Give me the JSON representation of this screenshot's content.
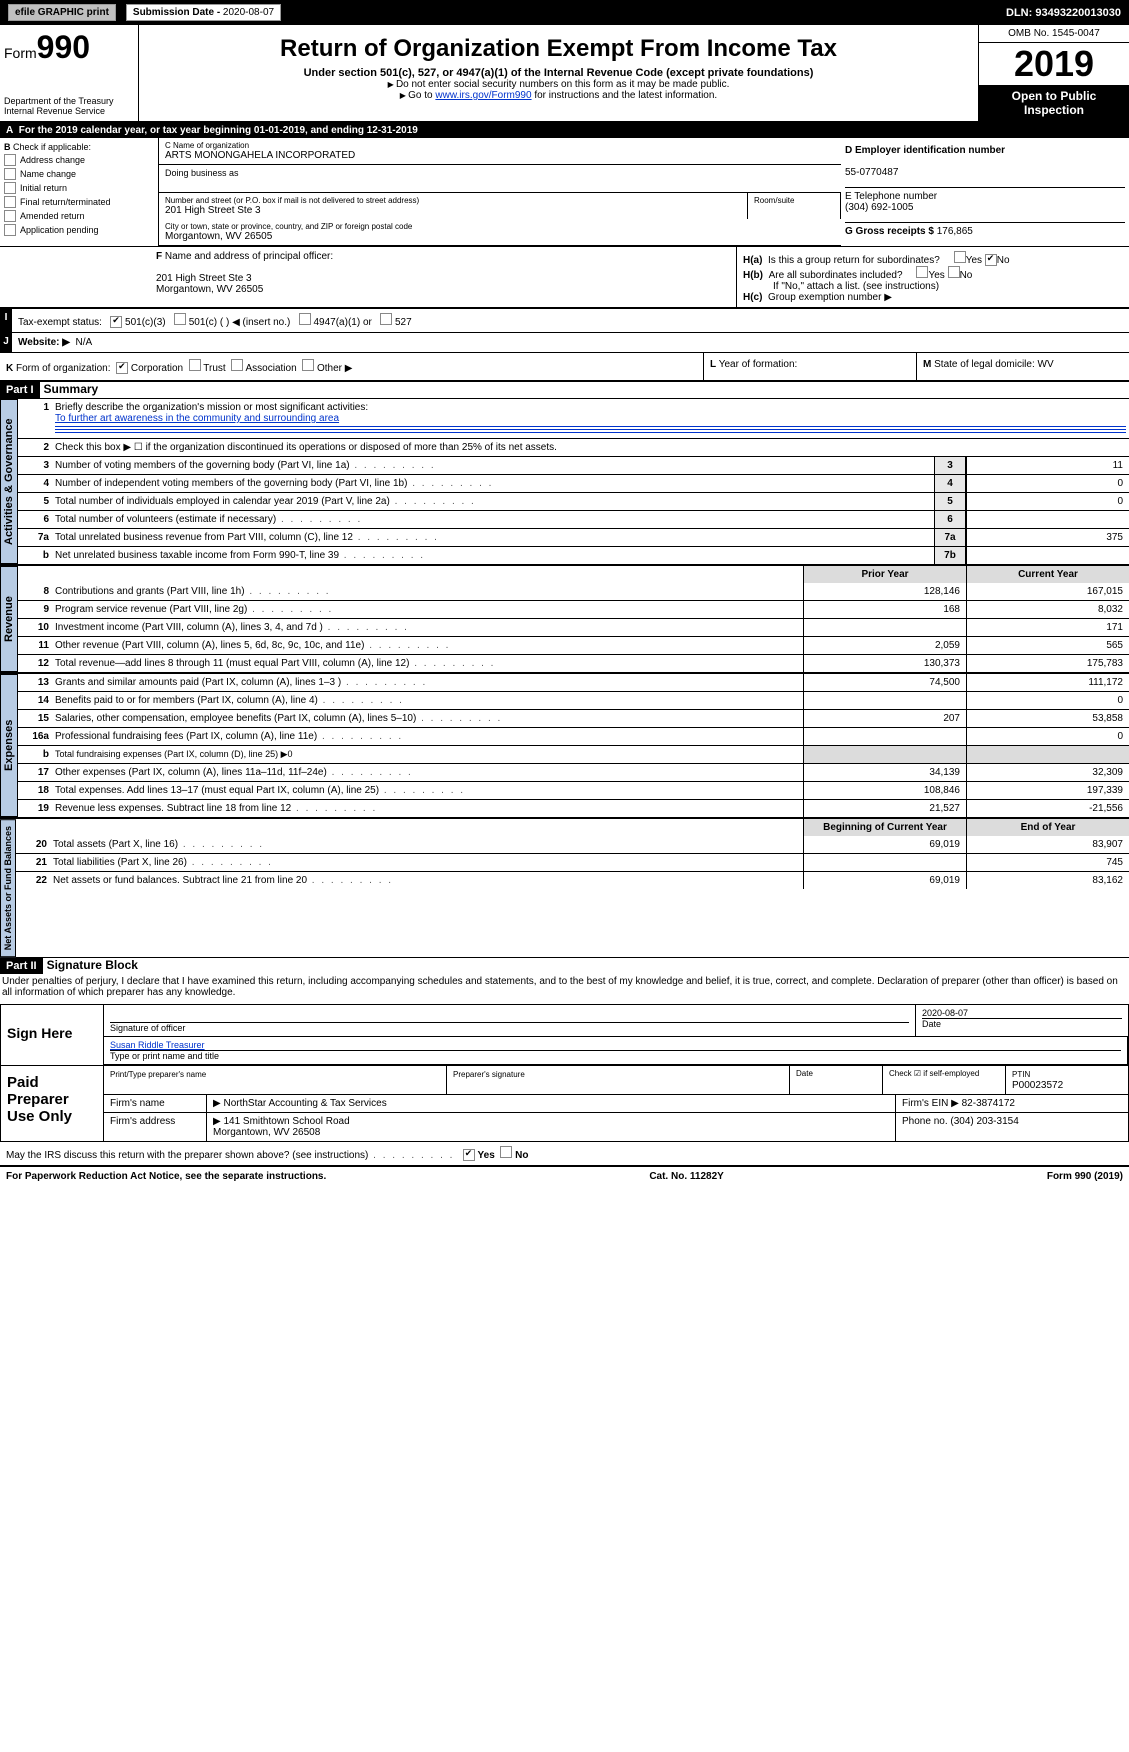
{
  "topbar": {
    "efile": "efile GRAPHIC print",
    "subdate_lbl": "Submission Date - ",
    "subdate": "2020-08-07",
    "dln_lbl": "DLN: ",
    "dln": "93493220013030"
  },
  "hdr": {
    "form": "Form",
    "num": "990",
    "title": "Return of Organization Exempt From Income Tax",
    "sub": "Under section 501(c), 527, or 4947(a)(1) of the Internal Revenue Code (except private foundations)",
    "note1": "Do not enter social security numbers on this form as it may be made public.",
    "note2a": "Go to ",
    "note2link": "www.irs.gov/Form990",
    "note2b": " for instructions and the latest information.",
    "dept": "Department of the Treasury",
    "irs": "Internal Revenue Service",
    "omb": "OMB No. 1545-0047",
    "year": "2019",
    "open": "Open to Public Inspection"
  },
  "rowA": {
    "a": "A",
    "txt1": "For the 2019 calendar year, or tax year beginning ",
    "begin": "01-01-2019",
    "txt2": ", and ending ",
    "end": "12-31-2019"
  },
  "b": {
    "lbl": "B",
    "check": "Check if applicable:",
    "items": [
      "Address change",
      "Name change",
      "Initial return",
      "Final return/terminated",
      "Amended return",
      "Application pending"
    ],
    "c_lbl": "C Name of organization",
    "c_name": "ARTS MONONGAHELA INCORPORATED",
    "dba": "Doing business as",
    "street_lbl": "Number and street (or P.O. box if mail is not delivered to street address)",
    "street": "201 High Street Ste 3",
    "room_lbl": "Room/suite",
    "city_lbl": "City or town, state or province, country, and ZIP or foreign postal code",
    "city": "Morgantown, WV  26505",
    "d_lbl": "D Employer identification number",
    "ein": "55-0770487",
    "e_lbl": "E Telephone number",
    "phone": "(304) 692-1005",
    "g_lbl": "G Gross receipts $ ",
    "gross": "176,865"
  },
  "f": {
    "lbl": "F",
    "txt": "Name and address of principal officer:",
    "addr1": "201 High Street Ste 3",
    "addr2": "Morgantown, WV  26505"
  },
  "h": {
    "ha": "H(a)",
    "ha_txt": "Is this a group return for subordinates?",
    "hb": "H(b)",
    "hb_txt": "Are all subordinates included?",
    "ifno": "If \"No,\" attach a list. (see instructions)",
    "hc": "H(c)",
    "hc_txt": "Group exemption number ▶",
    "yes": "Yes",
    "no": "No"
  },
  "i": {
    "lbl": "I",
    "txt": "Tax-exempt status:",
    "c3": "501(c)(3)",
    "c": "501(c) (   ) ◀ (insert no.)",
    "a1": "4947(a)(1) or",
    "s527": "527"
  },
  "j": {
    "lbl": "J",
    "txt": "Website: ▶",
    "val": "N/A"
  },
  "k": {
    "lbl": "K",
    "txt": "Form of organization:",
    "corp": "Corporation",
    "trust": "Trust",
    "assoc": "Association",
    "other": "Other ▶"
  },
  "l": {
    "lbl": "L",
    "txt": "Year of formation:"
  },
  "m": {
    "lbl": "M",
    "txt": "State of legal domicile: ",
    "val": "WV"
  },
  "part1": {
    "lbl": "Part I",
    "title": "Summary"
  },
  "gov": {
    "tab": "Activities & Governance",
    "l1_num": "1",
    "l1": "Briefly describe the organization's mission or most significant activities:",
    "l1_val": "To further art awareness in the community and surrounding area",
    "l2_num": "2",
    "l2": "Check this box ▶ ☐  if the organization discontinued its operations or disposed of more than 25% of its net assets.",
    "l3_num": "3",
    "l3": "Number of voting members of the governing body (Part VI, line 1a)",
    "v3": "11",
    "l4_num": "4",
    "l4": "Number of independent voting members of the governing body (Part VI, line 1b)",
    "v4": "0",
    "l5_num": "5",
    "l5": "Total number of individuals employed in calendar year 2019 (Part V, line 2a)",
    "v5": "0",
    "l6_num": "6",
    "l6": "Total number of volunteers (estimate if necessary)",
    "v6": "",
    "l7a_num": "7a",
    "l7a": "Total unrelated business revenue from Part VIII, column (C), line 12",
    "v7a": "375",
    "l7b_num": "b",
    "l7b": "Net unrelated business taxable income from Form 990-T, line 39",
    "v7b": ""
  },
  "rev": {
    "tab": "Revenue",
    "prior": "Prior Year",
    "curr": "Current Year",
    "rows": [
      {
        "n": "8",
        "d": "Contributions and grants (Part VIII, line 1h)",
        "p": "128,146",
        "c": "167,015"
      },
      {
        "n": "9",
        "d": "Program service revenue (Part VIII, line 2g)",
        "p": "168",
        "c": "8,032"
      },
      {
        "n": "10",
        "d": "Investment income (Part VIII, column (A), lines 3, 4, and 7d )",
        "p": "",
        "c": "171"
      },
      {
        "n": "11",
        "d": "Other revenue (Part VIII, column (A), lines 5, 6d, 8c, 9c, 10c, and 11e)",
        "p": "2,059",
        "c": "565"
      },
      {
        "n": "12",
        "d": "Total revenue—add lines 8 through 11 (must equal Part VIII, column (A), line 12)",
        "p": "130,373",
        "c": "175,783"
      }
    ]
  },
  "exp": {
    "tab": "Expenses",
    "rows": [
      {
        "n": "13",
        "d": "Grants and similar amounts paid (Part IX, column (A), lines 1–3 )",
        "p": "74,500",
        "c": "111,172"
      },
      {
        "n": "14",
        "d": "Benefits paid to or for members (Part IX, column (A), line 4)",
        "p": "",
        "c": "0"
      },
      {
        "n": "15",
        "d": "Salaries, other compensation, employee benefits (Part IX, column (A), lines 5–10)",
        "p": "207",
        "c": "53,858"
      },
      {
        "n": "16a",
        "d": "Professional fundraising fees (Part IX, column (A), line 11e)",
        "p": "",
        "c": "0"
      },
      {
        "n": "b",
        "d": "Total fundraising expenses (Part IX, column (D), line 25) ▶0",
        "p": "—",
        "c": "—"
      },
      {
        "n": "17",
        "d": "Other expenses (Part IX, column (A), lines 11a–11d, 11f–24e)",
        "p": "34,139",
        "c": "32,309"
      },
      {
        "n": "18",
        "d": "Total expenses. Add lines 13–17 (must equal Part IX, column (A), line 25)",
        "p": "108,846",
        "c": "197,339"
      },
      {
        "n": "19",
        "d": "Revenue less expenses. Subtract line 18 from line 12",
        "p": "21,527",
        "c": "-21,556"
      }
    ]
  },
  "net": {
    "tab": "Net Assets or Fund Balances",
    "begin": "Beginning of Current Year",
    "end": "End of Year",
    "rows": [
      {
        "n": "20",
        "d": "Total assets (Part X, line 16)",
        "p": "69,019",
        "c": "83,907"
      },
      {
        "n": "21",
        "d": "Total liabilities (Part X, line 26)",
        "p": "",
        "c": "745"
      },
      {
        "n": "22",
        "d": "Net assets or fund balances. Subtract line 21 from line 20",
        "p": "69,019",
        "c": "83,162"
      }
    ]
  },
  "part2": {
    "lbl": "Part II",
    "title": "Signature Block"
  },
  "declare": "Under penalties of perjury, I declare that I have examined this return, including accompanying schedules and statements, and to the best of my knowledge and belief, it is true, correct, and complete. Declaration of preparer (other than officer) is based on all information of which preparer has any knowledge.",
  "sign": {
    "here": "Sign Here",
    "sig_lbl": "Signature of officer",
    "date": "2020-08-07",
    "date_lbl": "Date",
    "name": "Susan Riddle  Treasurer",
    "name_lbl": "Type or print name and title"
  },
  "paid": {
    "lbl": "Paid Preparer Use Only",
    "prep_lbl": "Print/Type preparer's name",
    "sig_lbl": "Preparer's signature",
    "date_lbl": "Date",
    "check_lbl": "Check ☑ if self-employed",
    "ptin_lbl": "PTIN",
    "ptin": "P00023572",
    "firm_lbl": "Firm's name",
    "firm": "▶ NorthStar Accounting & Tax Services",
    "ein_lbl": "Firm's EIN ▶ ",
    "ein": "82-3874172",
    "addr_lbl": "Firm's address",
    "addr1": "▶ 141 Smithtown School Road",
    "addr2": "Morgantown, WV  26508",
    "phone_lbl": "Phone no. ",
    "phone": "(304) 203-3154"
  },
  "discuss": {
    "txt": "May the IRS discuss this return with the preparer shown above? (see instructions)",
    "yes": "Yes",
    "no": "No"
  },
  "footer": {
    "left": "For Paperwork Reduction Act Notice, see the separate instructions.",
    "mid": "Cat. No. 11282Y",
    "right": "Form 990 (2019)"
  }
}
